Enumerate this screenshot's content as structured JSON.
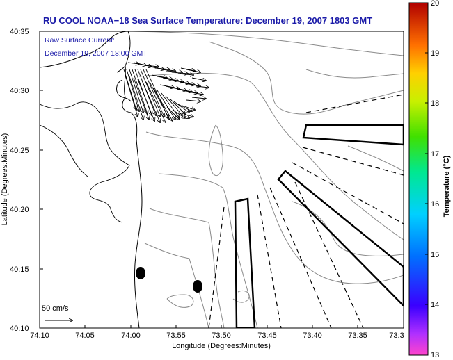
{
  "chart_data": {
    "type": "map",
    "title": "RU COOL  NOAA−18  Sea Surface Temperature:  December 19, 2007 1803 GMT",
    "inset_lines": [
      "Raw Surface Current:",
      "December 19, 2007 18:00 GMT"
    ],
    "xlabel": "Longitude (Degrees:Minutes)",
    "ylabel": "Latitude (Degrees:Minutes)",
    "x_tick_labels": [
      "74:10",
      "74:05",
      "74:00",
      "73:55",
      "73:50",
      "73:45",
      "73:40",
      "73:35",
      "73:3"
    ],
    "y_tick_labels": [
      "40:35",
      "40:30",
      "40:25",
      "40:20",
      "40:15",
      "40:10"
    ],
    "xlim": [
      -74.1667,
      -73.5
    ],
    "ylim": [
      40.1667,
      40.5833
    ],
    "scale_label": "50 cm/s",
    "colorbar": {
      "label": "Temperature (°C)",
      "ticks": [
        "20",
        "19",
        "18",
        "17",
        "16",
        "15",
        "14",
        "13"
      ],
      "range": [
        13,
        20
      ]
    },
    "colors": {
      "title": "#1a1aa8",
      "inset": "#1a1aa8",
      "coast": "#000000",
      "bathymetry": "#8a8a8a"
    }
  }
}
